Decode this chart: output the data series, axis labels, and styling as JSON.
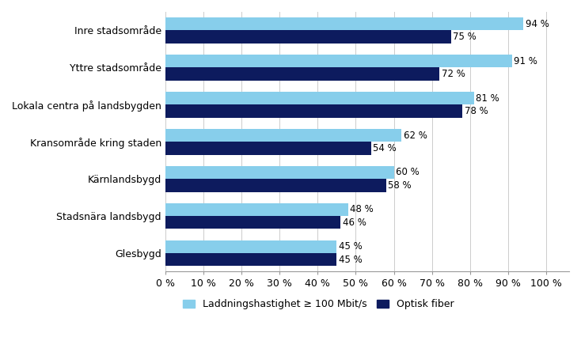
{
  "categories": [
    "Inre stadsområde",
    "Yttre stadsområde",
    "Lokala centra på landsbygden",
    "Kransområde kring staden",
    "Kärnlandsbygd",
    "Stadsnära landsbygd",
    "Glesbygd"
  ],
  "speed_values": [
    94,
    91,
    81,
    62,
    60,
    48,
    45
  ],
  "fiber_values": [
    75,
    72,
    78,
    54,
    58,
    46,
    45
  ],
  "speed_color": "#87CEEB",
  "fiber_color": "#0D1B5E",
  "speed_label": "Laddningshastighet ≥ 100 Mbit/s",
  "fiber_label": "Optisk fiber",
  "xlim": [
    0,
    100
  ],
  "xticks": [
    0,
    10,
    20,
    30,
    40,
    50,
    60,
    70,
    80,
    90,
    100
  ],
  "background_color": "#ffffff",
  "bar_height": 0.35,
  "label_fontsize": 9,
  "tick_fontsize": 9,
  "legend_fontsize": 9,
  "value_fontsize": 8.5
}
